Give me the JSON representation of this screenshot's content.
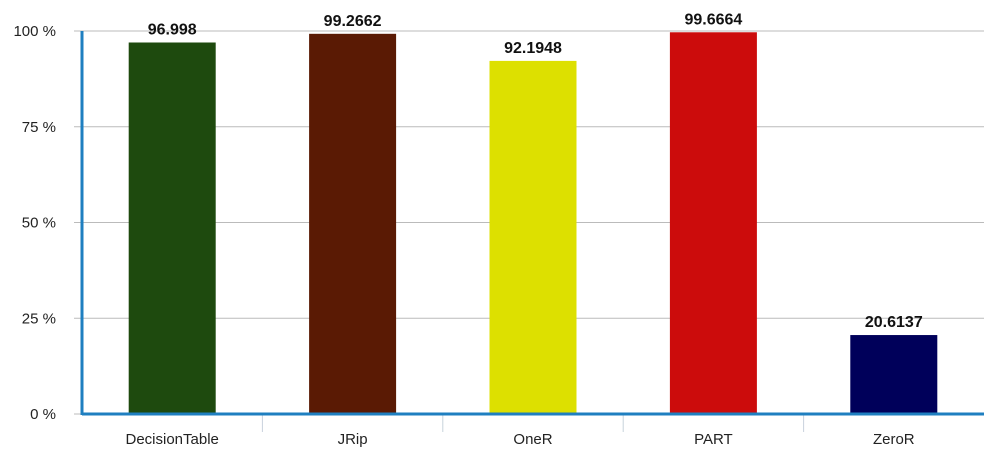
{
  "chart_data": {
    "type": "bar",
    "categories": [
      "DecisionTable",
      "JRip",
      "OneR",
      "PART",
      "ZeroR"
    ],
    "values": [
      96.998,
      99.2662,
      92.1948,
      99.6664,
      20.6137
    ],
    "value_labels": [
      "96.998",
      "99.2662",
      "92.1948",
      "99.6664",
      "20.6137"
    ],
    "colors": [
      "#1e4a0e",
      "#5a1a04",
      "#dde000",
      "#cc0c0c",
      "#00005a"
    ],
    "y_ticks": [
      {
        "value": 0,
        "label": "0 %"
      },
      {
        "value": 25,
        "label": "25 %"
      },
      {
        "value": 50,
        "label": "50 %"
      },
      {
        "value": 75,
        "label": "75 %"
      },
      {
        "value": 100,
        "label": "100 %"
      }
    ],
    "ylim": [
      0,
      100
    ],
    "grid": true,
    "legend": "none",
    "title": "",
    "xlabel": "",
    "ylabel": "",
    "axis_color": "#1f7fc0",
    "grid_color": "#bbbbbb"
  }
}
